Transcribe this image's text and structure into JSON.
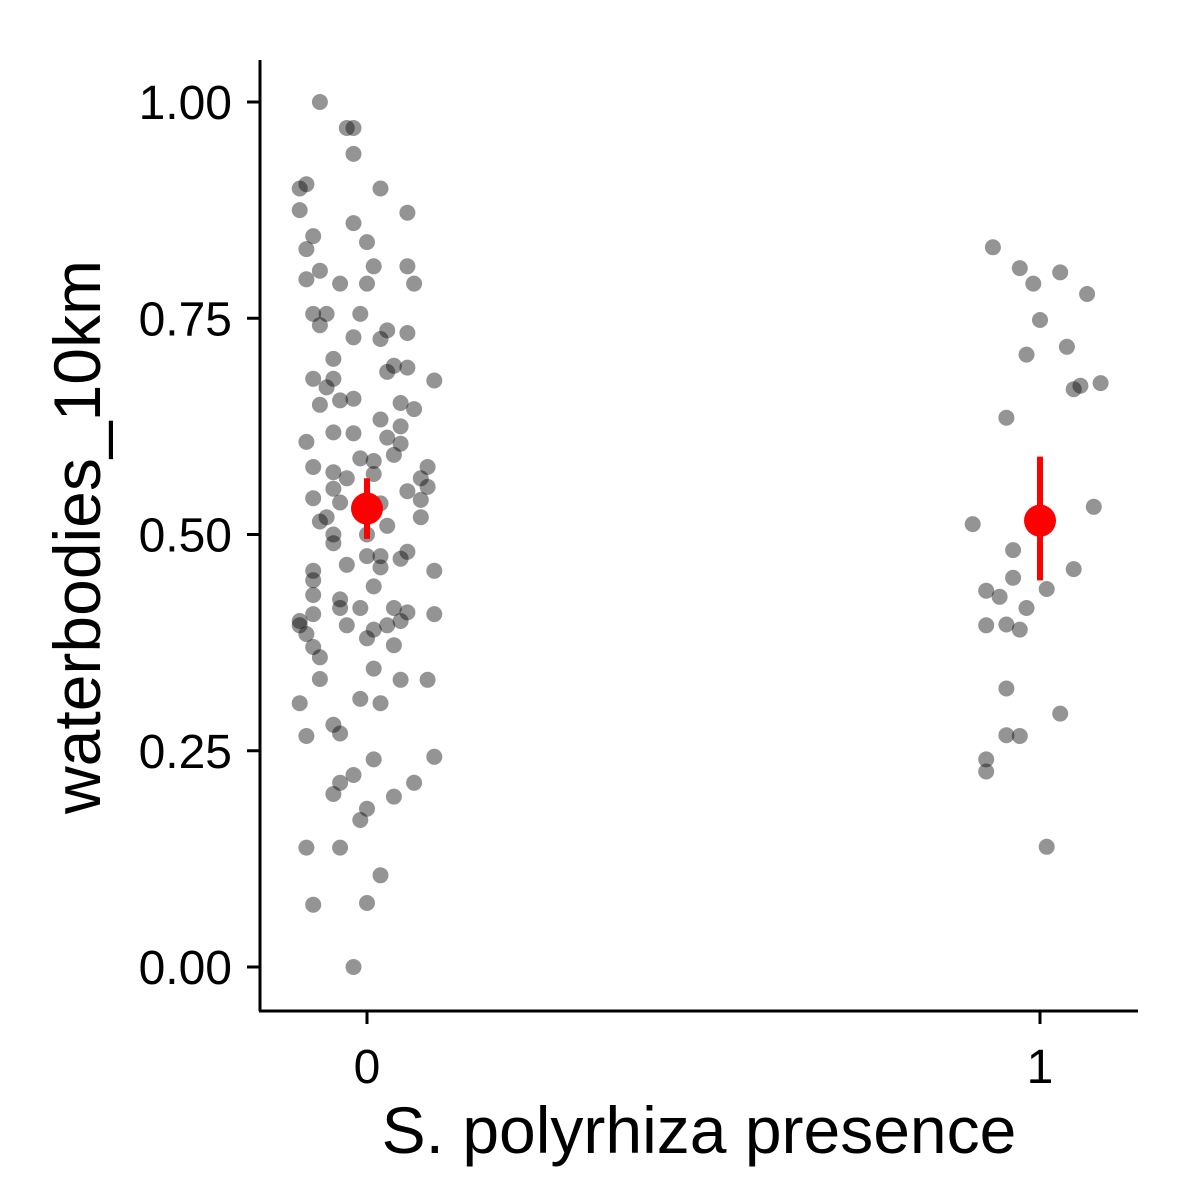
{
  "chart_data": {
    "type": "scatter",
    "xlabel": "S. polyrhiza presence",
    "ylabel": "waterbodies_10km",
    "ylim": [
      -0.05,
      1.05
    ],
    "xlim": [
      -0.16,
      1.15
    ],
    "categories": [
      "0",
      "1"
    ],
    "y_ticks": [
      "0.00",
      "0.25",
      "0.50",
      "0.75",
      "1.00"
    ],
    "grid": false,
    "point_color": "#808080",
    "summary_color": "#ff0000",
    "points": [
      {
        "x": -0.07,
        "y": 1.0
      },
      {
        "x": -0.03,
        "y": 0.97
      },
      {
        "x": -0.02,
        "y": 0.97
      },
      {
        "x": -0.02,
        "y": 0.94
      },
      {
        "x": -0.09,
        "y": 0.905
      },
      {
        "x": -0.1,
        "y": 0.9
      },
      {
        "x": 0.02,
        "y": 0.9
      },
      {
        "x": -0.1,
        "y": 0.875
      },
      {
        "x": 0.06,
        "y": 0.872
      },
      {
        "x": -0.02,
        "y": 0.86
      },
      {
        "x": -0.08,
        "y": 0.845
      },
      {
        "x": 0.0,
        "y": 0.838
      },
      {
        "x": -0.09,
        "y": 0.83
      },
      {
        "x": 0.01,
        "y": 0.81
      },
      {
        "x": 0.06,
        "y": 0.81
      },
      {
        "x": -0.07,
        "y": 0.805
      },
      {
        "x": -0.09,
        "y": 0.795
      },
      {
        "x": -0.04,
        "y": 0.79
      },
      {
        "x": 0.0,
        "y": 0.79
      },
      {
        "x": 0.07,
        "y": 0.79
      },
      {
        "x": -0.08,
        "y": 0.755
      },
      {
        "x": -0.06,
        "y": 0.755
      },
      {
        "x": -0.01,
        "y": 0.755
      },
      {
        "x": -0.07,
        "y": 0.742
      },
      {
        "x": 0.03,
        "y": 0.736
      },
      {
        "x": 0.06,
        "y": 0.733
      },
      {
        "x": -0.02,
        "y": 0.728
      },
      {
        "x": 0.02,
        "y": 0.726
      },
      {
        "x": -0.05,
        "y": 0.703
      },
      {
        "x": 0.04,
        "y": 0.695
      },
      {
        "x": 0.06,
        "y": 0.693
      },
      {
        "x": 0.03,
        "y": 0.688
      },
      {
        "x": -0.08,
        "y": 0.68
      },
      {
        "x": -0.05,
        "y": 0.68
      },
      {
        "x": 0.1,
        "y": 0.678
      },
      {
        "x": -0.06,
        "y": 0.67
      },
      {
        "x": -0.04,
        "y": 0.655
      },
      {
        "x": -0.02,
        "y": 0.657
      },
      {
        "x": -0.07,
        "y": 0.65
      },
      {
        "x": 0.05,
        "y": 0.652
      },
      {
        "x": 0.07,
        "y": 0.645
      },
      {
        "x": 0.02,
        "y": 0.633
      },
      {
        "x": 0.05,
        "y": 0.625
      },
      {
        "x": -0.05,
        "y": 0.618
      },
      {
        "x": -0.02,
        "y": 0.617
      },
      {
        "x": 0.03,
        "y": 0.612
      },
      {
        "x": -0.09,
        "y": 0.607
      },
      {
        "x": 0.05,
        "y": 0.605
      },
      {
        "x": 0.04,
        "y": 0.592
      },
      {
        "x": -0.01,
        "y": 0.588
      },
      {
        "x": 0.01,
        "y": 0.585
      },
      {
        "x": -0.08,
        "y": 0.578
      },
      {
        "x": 0.09,
        "y": 0.578
      },
      {
        "x": -0.05,
        "y": 0.572
      },
      {
        "x": 0.01,
        "y": 0.57
      },
      {
        "x": -0.03,
        "y": 0.565
      },
      {
        "x": 0.08,
        "y": 0.565
      },
      {
        "x": 0.09,
        "y": 0.555
      },
      {
        "x": -0.05,
        "y": 0.553
      },
      {
        "x": 0.06,
        "y": 0.55
      },
      {
        "x": -0.08,
        "y": 0.542
      },
      {
        "x": 0.08,
        "y": 0.54
      },
      {
        "x": -0.04,
        "y": 0.537
      },
      {
        "x": 0.02,
        "y": 0.536
      },
      {
        "x": -0.06,
        "y": 0.52
      },
      {
        "x": 0.08,
        "y": 0.52
      },
      {
        "x": -0.07,
        "y": 0.515
      },
      {
        "x": 0.03,
        "y": 0.51
      },
      {
        "x": -0.05,
        "y": 0.5
      },
      {
        "x": 0.0,
        "y": 0.5
      },
      {
        "x": -0.05,
        "y": 0.49
      },
      {
        "x": 0.06,
        "y": 0.48
      },
      {
        "x": 0.0,
        "y": 0.475
      },
      {
        "x": 0.02,
        "y": 0.475
      },
      {
        "x": 0.05,
        "y": 0.472
      },
      {
        "x": -0.03,
        "y": 0.465
      },
      {
        "x": 0.02,
        "y": 0.462
      },
      {
        "x": -0.08,
        "y": 0.458
      },
      {
        "x": 0.1,
        "y": 0.458
      },
      {
        "x": -0.08,
        "y": 0.447
      },
      {
        "x": 0.01,
        "y": 0.44
      },
      {
        "x": -0.04,
        "y": 0.425
      },
      {
        "x": -0.08,
        "y": 0.43
      },
      {
        "x": -0.04,
        "y": 0.415
      },
      {
        "x": -0.01,
        "y": 0.415
      },
      {
        "x": 0.04,
        "y": 0.415
      },
      {
        "x": 0.06,
        "y": 0.41
      },
      {
        "x": -0.08,
        "y": 0.408
      },
      {
        "x": 0.1,
        "y": 0.408
      },
      {
        "x": -0.1,
        "y": 0.4
      },
      {
        "x": 0.05,
        "y": 0.4
      },
      {
        "x": -0.1,
        "y": 0.395
      },
      {
        "x": -0.03,
        "y": 0.395
      },
      {
        "x": 0.01,
        "y": 0.39
      },
      {
        "x": 0.03,
        "y": 0.395
      },
      {
        "x": -0.09,
        "y": 0.385
      },
      {
        "x": 0.0,
        "y": 0.38
      },
      {
        "x": -0.08,
        "y": 0.37
      },
      {
        "x": 0.04,
        "y": 0.372
      },
      {
        "x": -0.07,
        "y": 0.358
      },
      {
        "x": 0.01,
        "y": 0.345
      },
      {
        "x": -0.07,
        "y": 0.333
      },
      {
        "x": 0.05,
        "y": 0.332
      },
      {
        "x": 0.09,
        "y": 0.332
      },
      {
        "x": -0.01,
        "y": 0.31
      },
      {
        "x": 0.02,
        "y": 0.305
      },
      {
        "x": -0.1,
        "y": 0.305
      },
      {
        "x": -0.05,
        "y": 0.28
      },
      {
        "x": -0.04,
        "y": 0.27
      },
      {
        "x": -0.09,
        "y": 0.267
      },
      {
        "x": 0.01,
        "y": 0.24
      },
      {
        "x": 0.1,
        "y": 0.243
      },
      {
        "x": -0.02,
        "y": 0.222
      },
      {
        "x": -0.04,
        "y": 0.213
      },
      {
        "x": 0.07,
        "y": 0.213
      },
      {
        "x": -0.05,
        "y": 0.2
      },
      {
        "x": 0.04,
        "y": 0.197
      },
      {
        "x": 0.0,
        "y": 0.183
      },
      {
        "x": -0.01,
        "y": 0.17
      },
      {
        "x": -0.09,
        "y": 0.138
      },
      {
        "x": -0.04,
        "y": 0.138
      },
      {
        "x": 0.02,
        "y": 0.106
      },
      {
        "x": -0.08,
        "y": 0.072
      },
      {
        "x": 0.0,
        "y": 0.074
      },
      {
        "x": -0.02,
        "y": 0.0
      },
      {
        "x": 0.93,
        "y": 0.832
      },
      {
        "x": 0.97,
        "y": 0.808
      },
      {
        "x": 1.03,
        "y": 0.803
      },
      {
        "x": 0.99,
        "y": 0.79
      },
      {
        "x": 1.07,
        "y": 0.778
      },
      {
        "x": 1.0,
        "y": 0.748
      },
      {
        "x": 1.04,
        "y": 0.717
      },
      {
        "x": 0.98,
        "y": 0.708
      },
      {
        "x": 1.09,
        "y": 0.675
      },
      {
        "x": 1.06,
        "y": 0.672
      },
      {
        "x": 1.05,
        "y": 0.668
      },
      {
        "x": 0.95,
        "y": 0.635
      },
      {
        "x": 1.08,
        "y": 0.532
      },
      {
        "x": 0.9,
        "y": 0.512
      },
      {
        "x": 0.96,
        "y": 0.482
      },
      {
        "x": 1.05,
        "y": 0.46
      },
      {
        "x": 0.96,
        "y": 0.45
      },
      {
        "x": 1.01,
        "y": 0.437
      },
      {
        "x": 0.92,
        "y": 0.435
      },
      {
        "x": 0.94,
        "y": 0.428
      },
      {
        "x": 0.98,
        "y": 0.415
      },
      {
        "x": 0.92,
        "y": 0.395
      },
      {
        "x": 0.95,
        "y": 0.396
      },
      {
        "x": 0.97,
        "y": 0.39
      },
      {
        "x": 0.95,
        "y": 0.322
      },
      {
        "x": 1.03,
        "y": 0.293
      },
      {
        "x": 0.95,
        "y": 0.268
      },
      {
        "x": 0.97,
        "y": 0.267
      },
      {
        "x": 0.92,
        "y": 0.24
      },
      {
        "x": 0.92,
        "y": 0.226
      },
      {
        "x": 1.01,
        "y": 0.139
      }
    ],
    "summary": [
      {
        "x": 0,
        "mean": 0.53,
        "lower": 0.495,
        "upper": 0.565
      },
      {
        "x": 1,
        "mean": 0.516,
        "lower": 0.447,
        "upper": 0.59
      }
    ]
  }
}
